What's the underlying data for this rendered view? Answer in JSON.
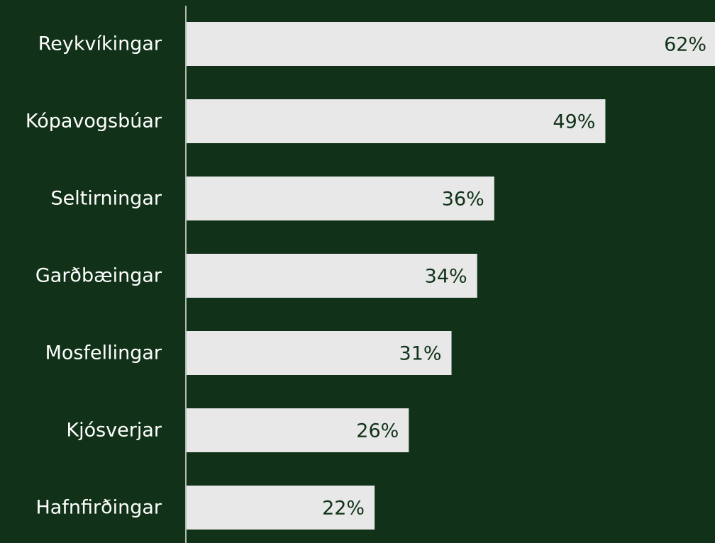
{
  "chart_data": {
    "type": "bar",
    "orientation": "horizontal",
    "categories": [
      "Reykvíkingar",
      "Kópavogsbúar",
      "Seltirningar",
      "Garðbæingar",
      "Mosfellingar",
      "Kjósverjar",
      "Hafnfirðingar"
    ],
    "values": [
      62,
      49,
      36,
      34,
      31,
      26,
      22
    ],
    "value_labels": [
      "62%",
      "49%",
      "36%",
      "34%",
      "31%",
      "26%",
      "22%"
    ],
    "color": "#e8e8e8"
  }
}
